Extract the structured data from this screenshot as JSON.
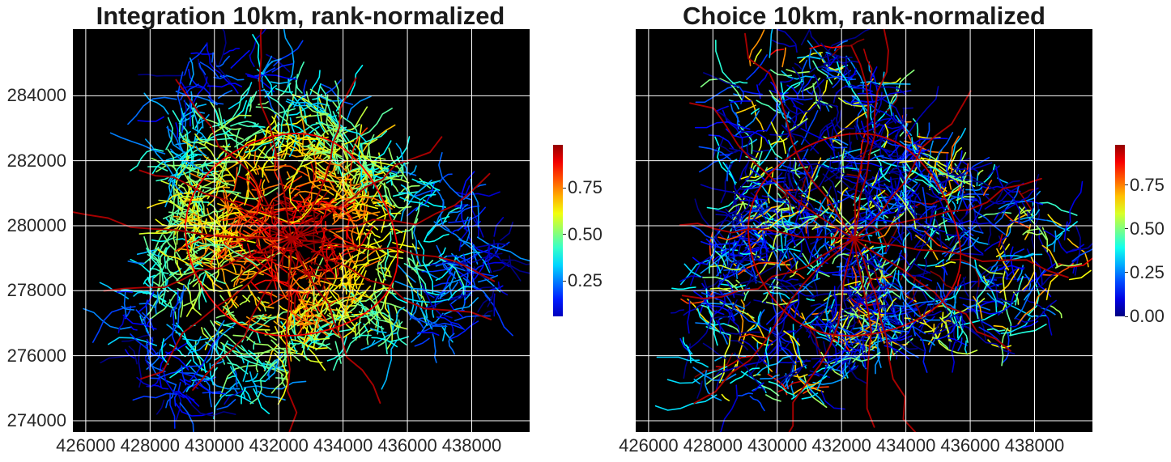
{
  "charts": {
    "colors": {
      "background": "#000000",
      "grid": "#ffffff",
      "colormap": "jet"
    },
    "chart_data": [
      {
        "type": "map",
        "title": "Integration 10km, rank-normalized",
        "xlabel": "",
        "ylabel": "",
        "xlim": [
          425600,
          439800
        ],
        "ylim": [
          273650,
          286050
        ],
        "xticks": [
          426000,
          428000,
          430000,
          432000,
          434000,
          436000,
          438000
        ],
        "yticks": [
          274000,
          276000,
          278000,
          280000,
          282000,
          284000
        ],
        "grid": true,
        "colorbar": {
          "range": [
            0.06,
            0.98
          ],
          "ticks": [
            0.25,
            0.5,
            0.75
          ],
          "tick_labels": [
            "0.25",
            "0.50",
            "0.75"
          ]
        },
        "show_yticklabels": true
      },
      {
        "type": "map",
        "title": "Choice 10km, rank-normalized",
        "xlabel": "",
        "ylabel": "",
        "xlim": [
          425600,
          439800
        ],
        "ylim": [
          273650,
          286050
        ],
        "xticks": [
          426000,
          428000,
          430000,
          432000,
          434000,
          436000,
          438000
        ],
        "yticks": [
          274000,
          276000,
          278000,
          280000,
          282000,
          284000
        ],
        "grid": true,
        "colorbar": {
          "range": [
            0.0,
            0.98
          ],
          "ticks": [
            0.0,
            0.25,
            0.5,
            0.75
          ],
          "tick_labels": [
            "0.00",
            "0.25",
            "0.50",
            "0.75"
          ]
        },
        "show_yticklabels": false
      }
    ]
  }
}
